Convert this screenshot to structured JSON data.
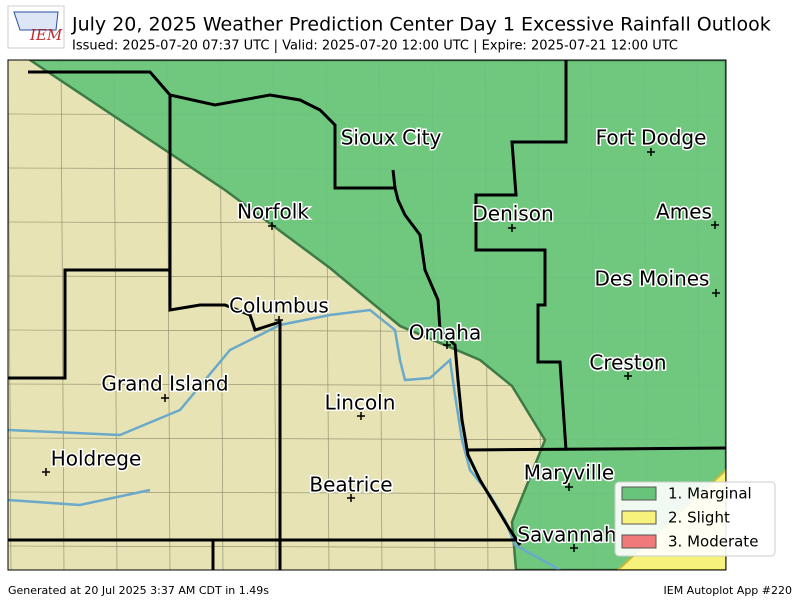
{
  "header": {
    "logo": "IEM",
    "title": "July 20, 2025 Weather Prediction Center Day 1 Excessive Rainfall Outlook",
    "subtitle": "Issued: 2025-07-20 07:37 UTC | Valid: 2025-07-20 12:00 UTC | Expire: 2025-07-21 12:00 UTC"
  },
  "cities": [
    "Sioux City",
    "Fort Dodge",
    "Norfolk",
    "Denison",
    "Ames",
    "Des Moines",
    "Columbus",
    "Omaha",
    "Grand Island",
    "Lincoln",
    "Creston",
    "Holdrege",
    "Beatrice",
    "Maryville",
    "Savannah"
  ],
  "legend": [
    {
      "label": "1. Marginal",
      "color": "#66c57b"
    },
    {
      "label": "2. Slight",
      "color": "#f6f27b"
    },
    {
      "label": "3. Moderate",
      "color": "#f07a7a"
    }
  ],
  "footer": {
    "left": "Generated at 20 Jul 2025 3:37 AM CDT in 1.49s",
    "right": "IEM Autoplot App #220"
  }
}
